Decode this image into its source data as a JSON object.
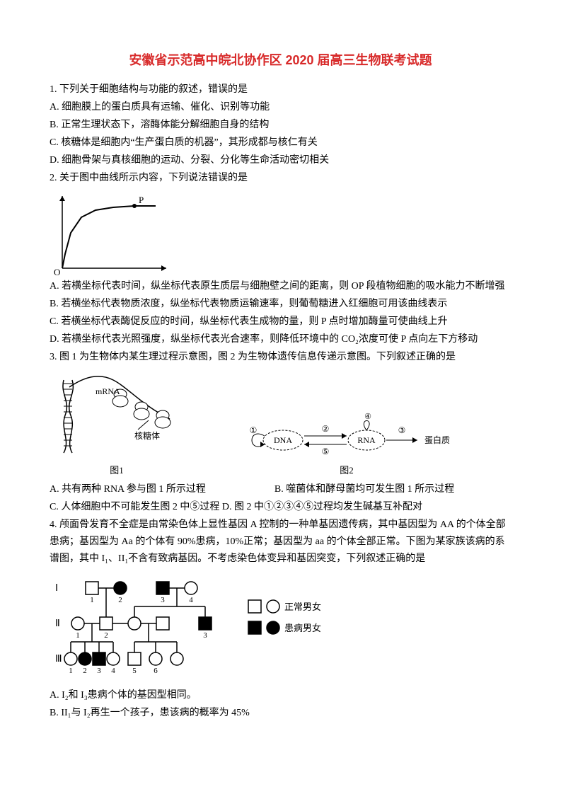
{
  "title": "安徽省示范高中皖北协作区 2020 届高三生物联考试题",
  "q1": {
    "stem": "1. 下列关于细胞结构与功能的叙述，错误的是",
    "A": "A. 细胞膜上的蛋白质具有运输、催化、识别等功能",
    "B": "B. 正常生理状态下，溶酶体能分解细胞自身的结构",
    "C": "C. 核糖体是细胞内“生产蛋白质的机器”，其形成都与核仁有关",
    "D": "D. 细胞骨架与真核细胞的运动、分裂、分化等生命活动密切相关"
  },
  "q2": {
    "stem": "2. 关于图中曲线所示内容，下列说法错误的是",
    "A": "A. 若横坐标代表时间，纵坐标代表原生质层与细胞壁之间的距离，则 OP 段植物细胞的吸水能力不断增强",
    "B": "B. 若横坐标代表物质浓度，纵坐标代表物质运输速率，则葡萄糖进入红细胞可用该曲线表示",
    "C": "C. 若横坐标代表酶促反应的时间，纵坐标代表生成物的量，则 P 点时增加酶量可使曲线上升",
    "D": "D. 若横坐标代表光照强度，纵坐标代表光合速率，则降低环境中的 CO₂浓度可使 P 点向左下方移动",
    "chart": {
      "type": "line",
      "width": 170,
      "height": 120,
      "background_color": "#ffffff",
      "axis_color": "#000000",
      "curve_color": "#000000",
      "origin_label": "O",
      "point_label": "P",
      "curve_points": [
        [
          18,
          110
        ],
        [
          22,
          90
        ],
        [
          30,
          60
        ],
        [
          45,
          38
        ],
        [
          65,
          28
        ],
        [
          90,
          24
        ],
        [
          120,
          22
        ],
        [
          150,
          22
        ]
      ],
      "arrow_x_tip": [
        165,
        110
      ],
      "arrow_y_tip": [
        18,
        8
      ],
      "p_pos": [
        120,
        22
      ]
    }
  },
  "q3": {
    "stem": "3. 图 1 为生物体内某生理过程示意图，图 2 为生物体遗传信息传递示意图。下列叙述正确的是",
    "A": "A. 共有两种 RNA 参与图 1 所示过程",
    "B": "B. 噬菌体和酵母菌均可发生图 1 所示过程",
    "C": "C. 人体细胞中不可能发生图 2 中⑤过程 D. 图 2 中①②③④⑤过程均发生碱基互补配对",
    "fig1_caption": "图1",
    "fig2_caption": "图2",
    "fig1_labels": {
      "mrna": "mRNA",
      "ribo": "核糖体"
    },
    "fig2_labels": {
      "dna": "DNA",
      "rna": "RNA",
      "protein": "蛋白质",
      "n1": "①",
      "n2": "②",
      "n3": "③",
      "n4": "④",
      "n5": "⑤"
    },
    "diagram_colors": {
      "stroke": "#000000",
      "fill": "#e8e8e8",
      "bg": "#ffffff"
    }
  },
  "q4": {
    "stem": "4. 颅面骨发育不全症是由常染色体上显性基因 A 控制的一种单基因遗传病，其中基因型为 AA 的个体全部患病；基因型为 Aa 的个体有 90%患病，10%正常；基因型为 aa 的个体全部正常。下图为某家族该病的系谱图，其中 I₁、II₁不含有致病基因。不考虑染色体变异和基因突变，下列叙述正确的是",
    "A": "A. I₂和 I₃患病个体的基因型相同。",
    "B": "B. II₁与 I₂再生一个孩子，患该病的概率为 45%",
    "legend": {
      "normal": "正常男女",
      "affected": "患病男女"
    },
    "gen_labels": {
      "I": "Ⅰ",
      "II": "Ⅱ",
      "III": "Ⅲ"
    },
    "pedigree": {
      "square_color_empty": "#ffffff",
      "square_color_fill": "#000000",
      "stroke": "#000000"
    }
  }
}
